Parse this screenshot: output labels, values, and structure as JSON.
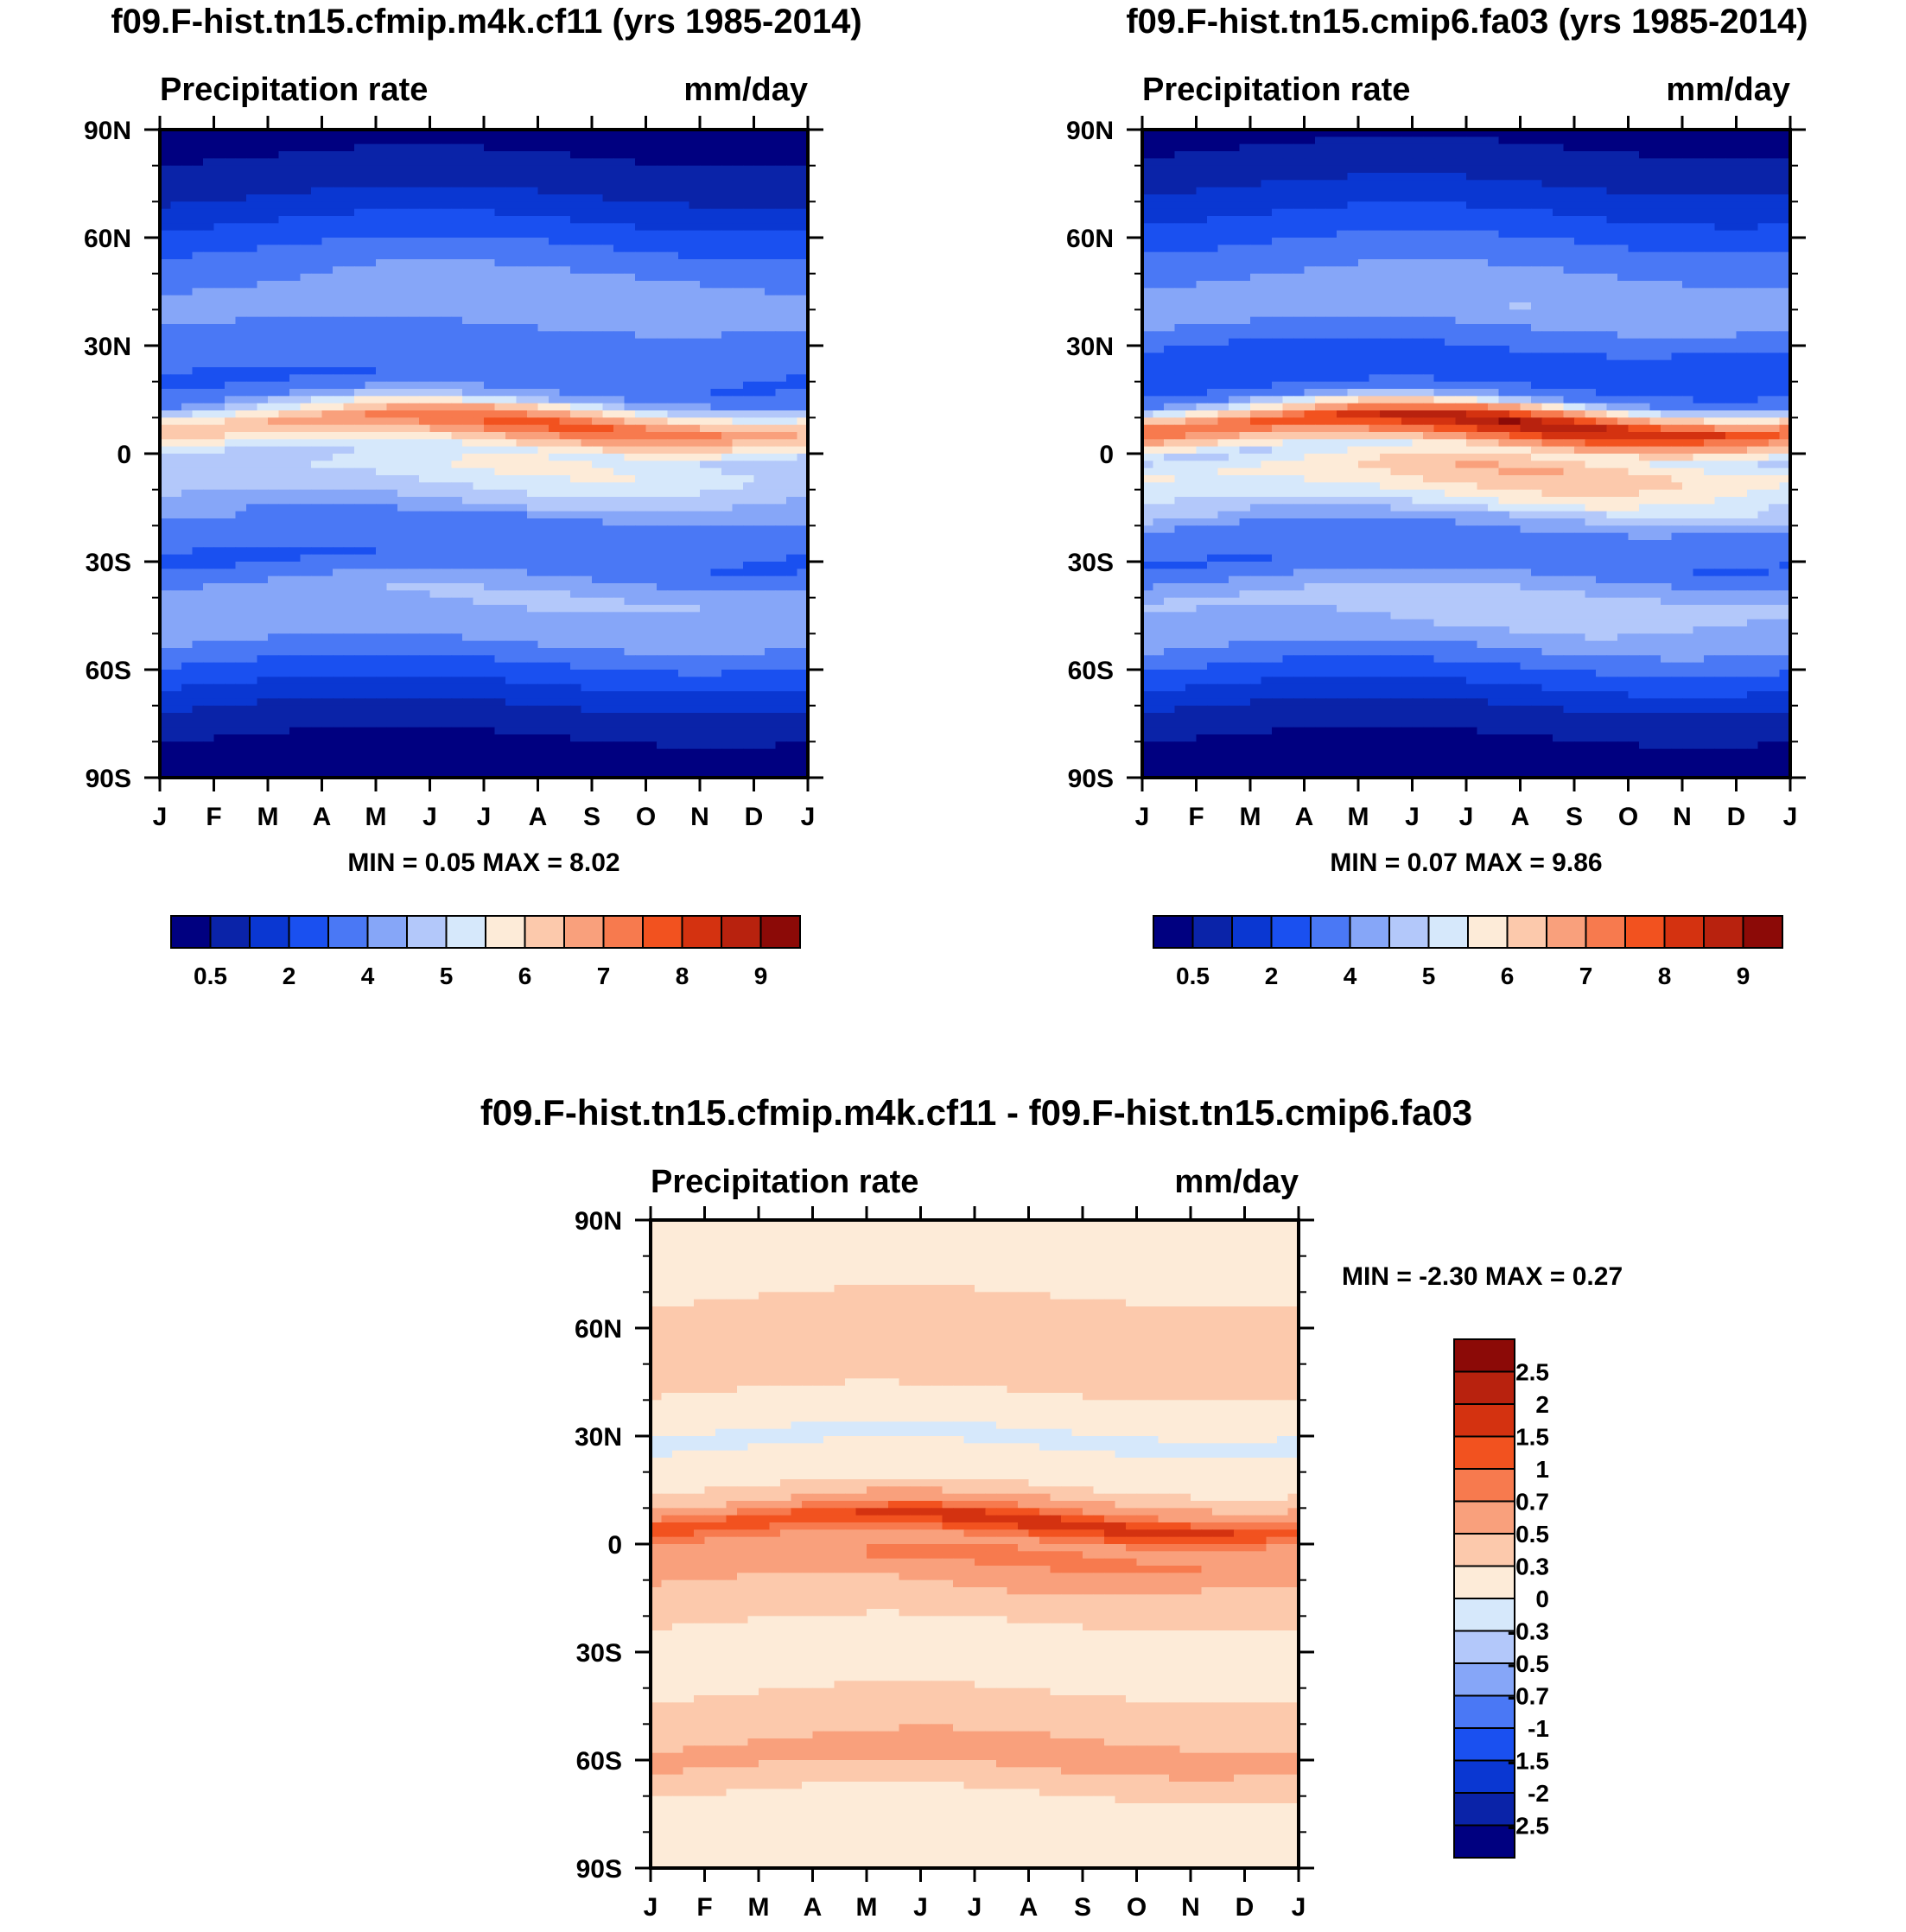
{
  "figure": {
    "title": "Precipitation rate latitude-month contour panels"
  },
  "chart_data": [
    {
      "type": "heatmap",
      "title": "f09.F-hist.tn15.cfmip.m4k.cf11 (yrs 1985-2014)",
      "subtitle_left": "Precipitation rate",
      "subtitle_right": "mm/day",
      "x_ticks": [
        "J",
        "F",
        "M",
        "A",
        "M",
        "J",
        "J",
        "A",
        "S",
        "O",
        "N",
        "D",
        "J"
      ],
      "y_ticks": [
        "90N",
        "60N",
        "30N",
        "0",
        "30S",
        "60S",
        "90S"
      ],
      "xlim": [
        0,
        12
      ],
      "ylim": [
        -90,
        90
      ],
      "stats_text": "MIN =   0.05 MAX =   8.02",
      "min": 0.05,
      "max": 8.02,
      "colorbar_labels": [
        "0.5",
        "2",
        "4",
        "5",
        "6",
        "7",
        "8",
        "9"
      ],
      "colorbar_colors": [
        "#000080",
        "#0a23a8",
        "#0a37d2",
        "#1a50f0",
        "#4a78f5",
        "#86a6f8",
        "#b3c8fa",
        "#d6e8fb",
        "#fdebd8",
        "#fcc9ac",
        "#f9a07c",
        "#f77a4e",
        "#f2521f",
        "#d43210",
        "#b8220e",
        "#8c0a07"
      ],
      "field_profile": {
        "lat": [
          90,
          80,
          70,
          60,
          50,
          40,
          30,
          20,
          15,
          12,
          8,
          5,
          0,
          -5,
          -10,
          -15,
          -20,
          -30,
          -40,
          -50,
          -60,
          -70,
          -80,
          -90
        ],
        "base": [
          0.3,
          0.7,
          1.3,
          2.2,
          3.0,
          3.3,
          2.6,
          2.4,
          3.2,
          5.0,
          6.8,
          6.0,
          4.2,
          4.5,
          4.0,
          3.4,
          2.6,
          2.4,
          3.6,
          3.3,
          2.2,
          1.2,
          0.5,
          0.3
        ],
        "jja_shift": 3.0
      }
    },
    {
      "type": "heatmap",
      "title": "f09.F-hist.tn15.cmip6.fa03 (yrs 1985-2014)",
      "subtitle_left": "Precipitation rate",
      "subtitle_right": "mm/day",
      "x_ticks": [
        "J",
        "F",
        "M",
        "A",
        "M",
        "J",
        "J",
        "A",
        "S",
        "O",
        "N",
        "D",
        "J"
      ],
      "y_ticks": [
        "90N",
        "60N",
        "30N",
        "0",
        "30S",
        "60S",
        "90S"
      ],
      "xlim": [
        0,
        12
      ],
      "ylim": [
        -90,
        90
      ],
      "stats_text": "MIN =   0.07 MAX =   9.86",
      "min": 0.07,
      "max": 9.86,
      "colorbar_labels": [
        "0.5",
        "2",
        "4",
        "5",
        "6",
        "7",
        "8",
        "9"
      ],
      "colorbar_colors": [
        "#000080",
        "#0a23a8",
        "#0a37d2",
        "#1a50f0",
        "#4a78f5",
        "#86a6f8",
        "#b3c8fa",
        "#d6e8fb",
        "#fdebd8",
        "#fcc9ac",
        "#f9a07c",
        "#f77a4e",
        "#f2521f",
        "#d43210",
        "#b8220e",
        "#8c0a07"
      ],
      "field_profile": {
        "lat": [
          90,
          80,
          70,
          60,
          50,
          40,
          30,
          20,
          15,
          12,
          8,
          5,
          0,
          -5,
          -10,
          -15,
          -20,
          -30,
          -40,
          -50,
          -60,
          -70,
          -80,
          -90
        ],
        "base": [
          0.4,
          0.8,
          1.5,
          2.3,
          3.0,
          3.5,
          2.4,
          2.0,
          3.0,
          5.5,
          8.2,
          7.0,
          4.5,
          5.5,
          5.0,
          4.2,
          3.0,
          2.4,
          3.8,
          3.5,
          2.3,
          1.2,
          0.5,
          0.3
        ],
        "jja_shift": 3.0
      }
    },
    {
      "type": "heatmap",
      "title": "f09.F-hist.tn15.cfmip.m4k.cf11 - f09.F-hist.tn15.cmip6.fa03",
      "subtitle_left": "Precipitation rate",
      "subtitle_right": "mm/day",
      "x_ticks": [
        "J",
        "F",
        "M",
        "A",
        "M",
        "J",
        "J",
        "A",
        "S",
        "O",
        "N",
        "D",
        "J"
      ],
      "y_ticks": [
        "90N",
        "60N",
        "30N",
        "0",
        "30S",
        "60S",
        "90S"
      ],
      "xlim": [
        0,
        12
      ],
      "ylim": [
        -90,
        90
      ],
      "stats_text": "MIN =  -2.30 MAX =   0.27",
      "min": -2.3,
      "max": 0.27,
      "colorbar_labels": [
        "2.5",
        "2",
        "1.5",
        "1",
        "0.7",
        "0.5",
        "0.3",
        "0",
        "-0.3",
        "-0.5",
        "-0.7",
        "-1",
        "-1.5",
        "-2",
        "-2.5"
      ],
      "colorbar_colors": [
        "#8c0a07",
        "#b8220e",
        "#d43210",
        "#f2521f",
        "#f77a4e",
        "#f9a07c",
        "#fcc9ac",
        "#fdebd8",
        "#d6e8fb",
        "#b3c8fa",
        "#86a6f8",
        "#4a78f5",
        "#1a50f0",
        "#0a37d2",
        "#0a23a8",
        "#000080"
      ],
      "field_profile": {
        "lat": [
          90,
          80,
          70,
          60,
          50,
          40,
          30,
          20,
          15,
          10,
          6,
          3,
          0,
          -5,
          -10,
          -15,
          -20,
          -30,
          -40,
          -50,
          -60,
          -70,
          -80,
          -90
        ],
        "base": [
          -0.1,
          -0.15,
          -0.3,
          -0.6,
          -0.5,
          -0.3,
          0.05,
          -0.1,
          -0.4,
          -0.9,
          -1.8,
          -1.4,
          -0.8,
          -1.1,
          -0.7,
          -0.6,
          -0.4,
          -0.1,
          -0.3,
          -0.6,
          -0.8,
          -0.3,
          -0.1,
          -0.1
        ],
        "jja_shift": 3.0
      }
    }
  ]
}
